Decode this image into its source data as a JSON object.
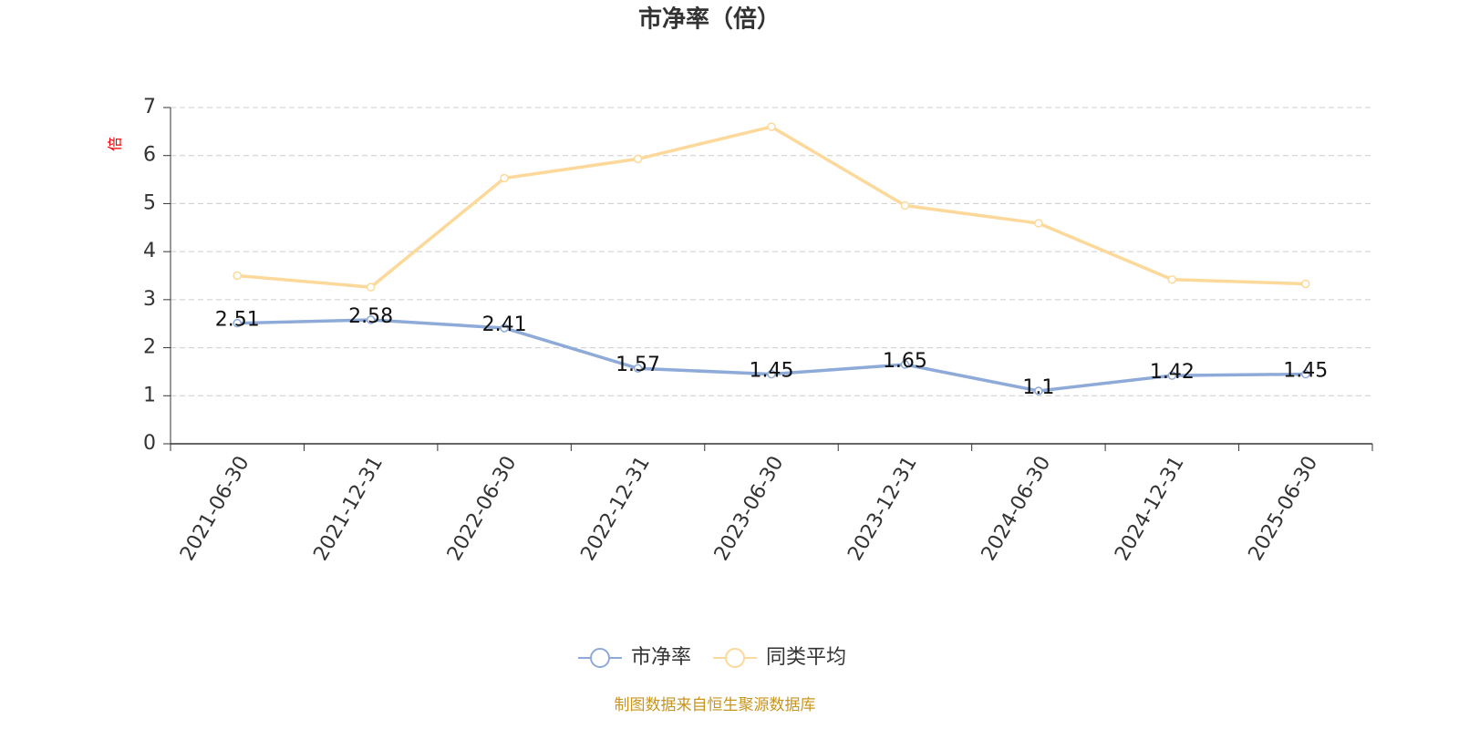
{
  "chart_data": {
    "type": "line",
    "title": "市净率（倍）",
    "y_label": "倍",
    "categories": [
      "2021-06-30",
      "2021-12-31",
      "2022-06-30",
      "2022-12-31",
      "2023-06-30",
      "2023-12-31",
      "2024-06-30",
      "2024-12-31",
      "2025-06-30"
    ],
    "series": [
      {
        "name": "市净率",
        "color": "#8eaad8",
        "values": [
          2.51,
          2.58,
          2.41,
          1.57,
          1.45,
          1.65,
          1.1,
          1.42,
          1.45
        ],
        "show_labels": true
      },
      {
        "name": "同类平均",
        "color": "#fcd99a",
        "values": [
          3.5,
          3.26,
          5.53,
          5.93,
          6.6,
          4.96,
          4.59,
          3.42,
          3.33
        ],
        "show_labels": false
      }
    ],
    "ylim": [
      0,
      7
    ],
    "yticks": [
      0,
      1,
      2,
      3,
      4,
      5,
      6,
      7
    ],
    "grid": true,
    "legend": "bottom"
  },
  "source": "制图数据来自恒生聚源数据库"
}
